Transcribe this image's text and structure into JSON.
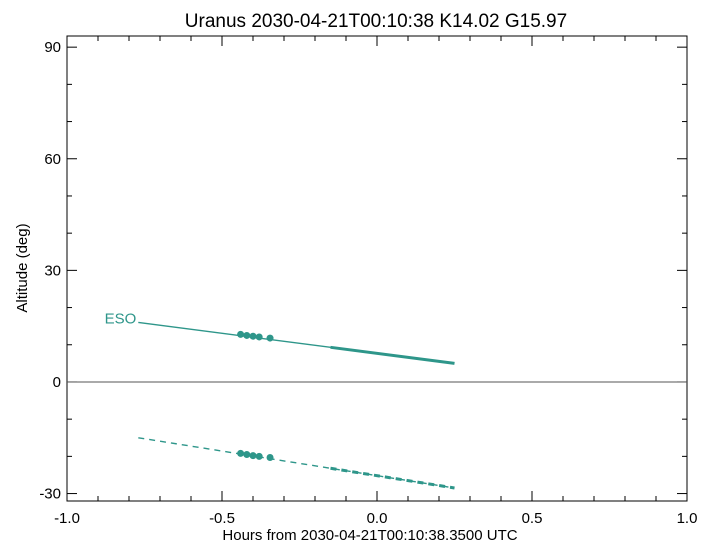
{
  "chart_data": {
    "type": "line",
    "title": "Uranus 2030-04-21T00:10:38  K14.02  G15.97",
    "xlabel": "Hours from 2030-04-21T00:10:38.3500 UTC",
    "ylabel": "Altitude (deg)",
    "xlim": [
      -1.0,
      1.0
    ],
    "ylim": [
      -32,
      93
    ],
    "xticks": [
      -1.0,
      -0.5,
      0.0,
      0.5,
      1.0
    ],
    "xtick_labels": [
      "-1.0",
      "-0.5",
      "0.0",
      "0.5",
      "1.0"
    ],
    "yticks": [
      -30,
      0,
      30,
      60,
      90
    ],
    "ytick_labels": [
      "-30",
      "0",
      "30",
      "60",
      "90"
    ],
    "zero_line": true,
    "grid": false,
    "color": "#2e968a",
    "series": [
      {
        "name": "ESO",
        "style": "solid",
        "x": [
          -0.77,
          0.25
        ],
        "y": [
          16.0,
          5.0
        ],
        "bold_x": [
          -0.15,
          0.25
        ],
        "markers_x": [
          -0.44,
          -0.42,
          -0.4,
          -0.38,
          -0.345
        ],
        "markers_y": [
          12.8,
          12.5,
          12.3,
          12.1,
          11.8
        ]
      },
      {
        "style": "dashed",
        "x": [
          -0.77,
          0.25
        ],
        "y": [
          -15.0,
          -28.5
        ],
        "bold_x": [
          -0.15,
          0.25
        ],
        "markers_x": [
          -0.44,
          -0.42,
          -0.4,
          -0.38,
          -0.345
        ],
        "markers_y": [
          -19.2,
          -19.5,
          -19.8,
          -20.0,
          -20.3
        ]
      }
    ]
  }
}
